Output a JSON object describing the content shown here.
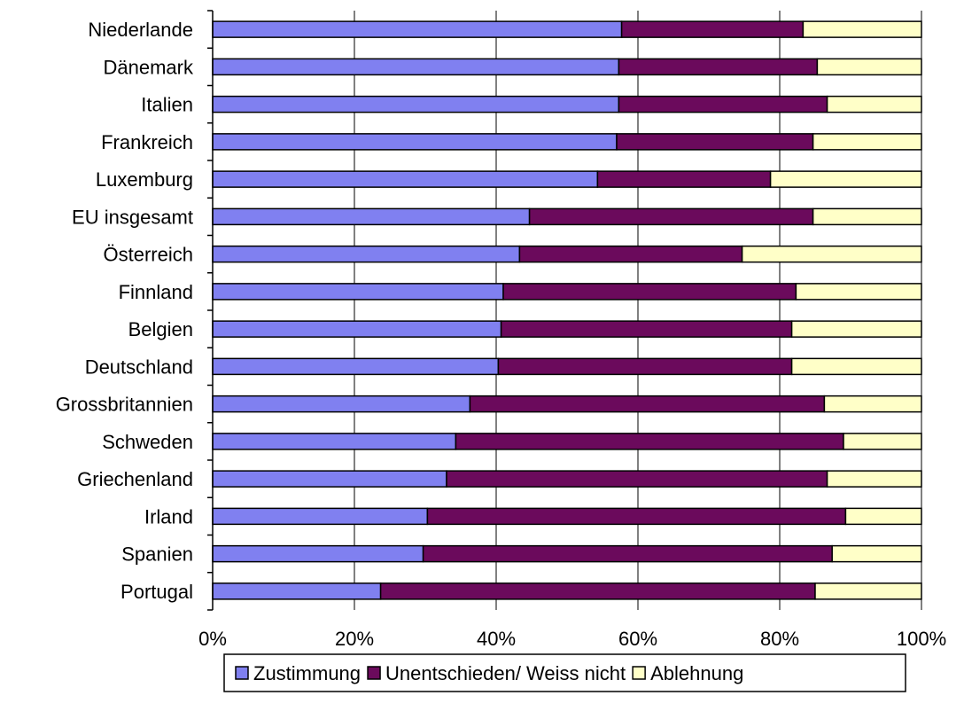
{
  "chart_data": {
    "type": "bar",
    "orientation": "horizontal",
    "stacked": "percent",
    "title": "",
    "xlabel": "",
    "ylabel": "",
    "xlim": [
      0,
      100
    ],
    "x_ticks": [
      "0%",
      "20%",
      "40%",
      "60%",
      "80%",
      "100%"
    ],
    "grid": "vertical",
    "legend_position": "bottom",
    "categories": [
      "Niederlande",
      "Dänemark",
      "Italien",
      "Frankreich",
      "Luxemburg",
      "EU insgesamt",
      "Österreich",
      "Finnland",
      "Belgien",
      "Deutschland",
      "Grossbritannien",
      "Schweden",
      "Griechenland",
      "Irland",
      "Spanien",
      "Portugal"
    ],
    "series": [
      {
        "name": "Zustimmung",
        "color": "#8080f0",
        "values": [
          57.7,
          57.3,
          57.3,
          57.0,
          54.3,
          44.7,
          43.3,
          41.0,
          40.7,
          40.3,
          36.3,
          34.3,
          33.0,
          30.3,
          29.7,
          23.7
        ]
      },
      {
        "name": "Unentschieden/ Weiss nicht",
        "color": "#6b0a5c",
        "values": [
          25.6,
          28.0,
          29.4,
          27.7,
          24.4,
          40.0,
          31.4,
          41.3,
          41.0,
          41.4,
          50.0,
          54.7,
          53.7,
          59.0,
          57.7,
          61.3
        ]
      },
      {
        "name": "Ablehnung",
        "color": "#ffffc8",
        "values": [
          16.7,
          14.7,
          13.3,
          15.3,
          21.3,
          15.3,
          25.3,
          17.7,
          18.3,
          18.3,
          13.7,
          11.0,
          13.3,
          10.7,
          12.6,
          15.0
        ]
      }
    ]
  }
}
